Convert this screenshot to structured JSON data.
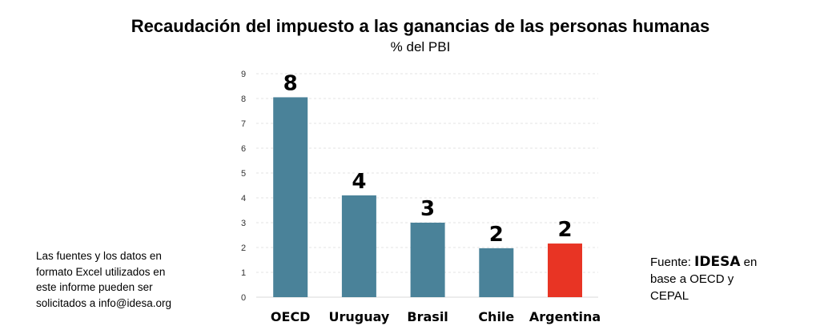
{
  "chart_data": {
    "type": "bar",
    "title": "Recaudación del impuesto a las ganancias de las personas humanas",
    "subtitle": "% del PBI",
    "categories": [
      "OECD",
      "Uruguay",
      "Brasil",
      "Chile",
      "Argentina"
    ],
    "values": [
      8.05,
      4.1,
      3.0,
      1.97,
      2.16
    ],
    "data_labels": [
      "8",
      "4",
      "3",
      "2",
      "2"
    ],
    "colors": [
      "#4a8299",
      "#4a8299",
      "#4a8299",
      "#4a8299",
      "#e83424"
    ],
    "ylim": [
      0,
      9
    ],
    "yticks": [
      "0",
      "1",
      "2",
      "3",
      "4",
      "5",
      "6",
      "7",
      "8",
      "9"
    ],
    "grid": true,
    "xlabel": "",
    "ylabel": ""
  },
  "note": [
    "Las fuentes y los datos en",
    "formato Excel utilizados en",
    "este informe pueden ser",
    "solicitados a info@idesa.org"
  ],
  "source": {
    "prefix": "Fuente: ",
    "brand": "IDESA",
    "suffix": " en",
    "line2": "base a OECD y",
    "line3": "CEPAL"
  }
}
